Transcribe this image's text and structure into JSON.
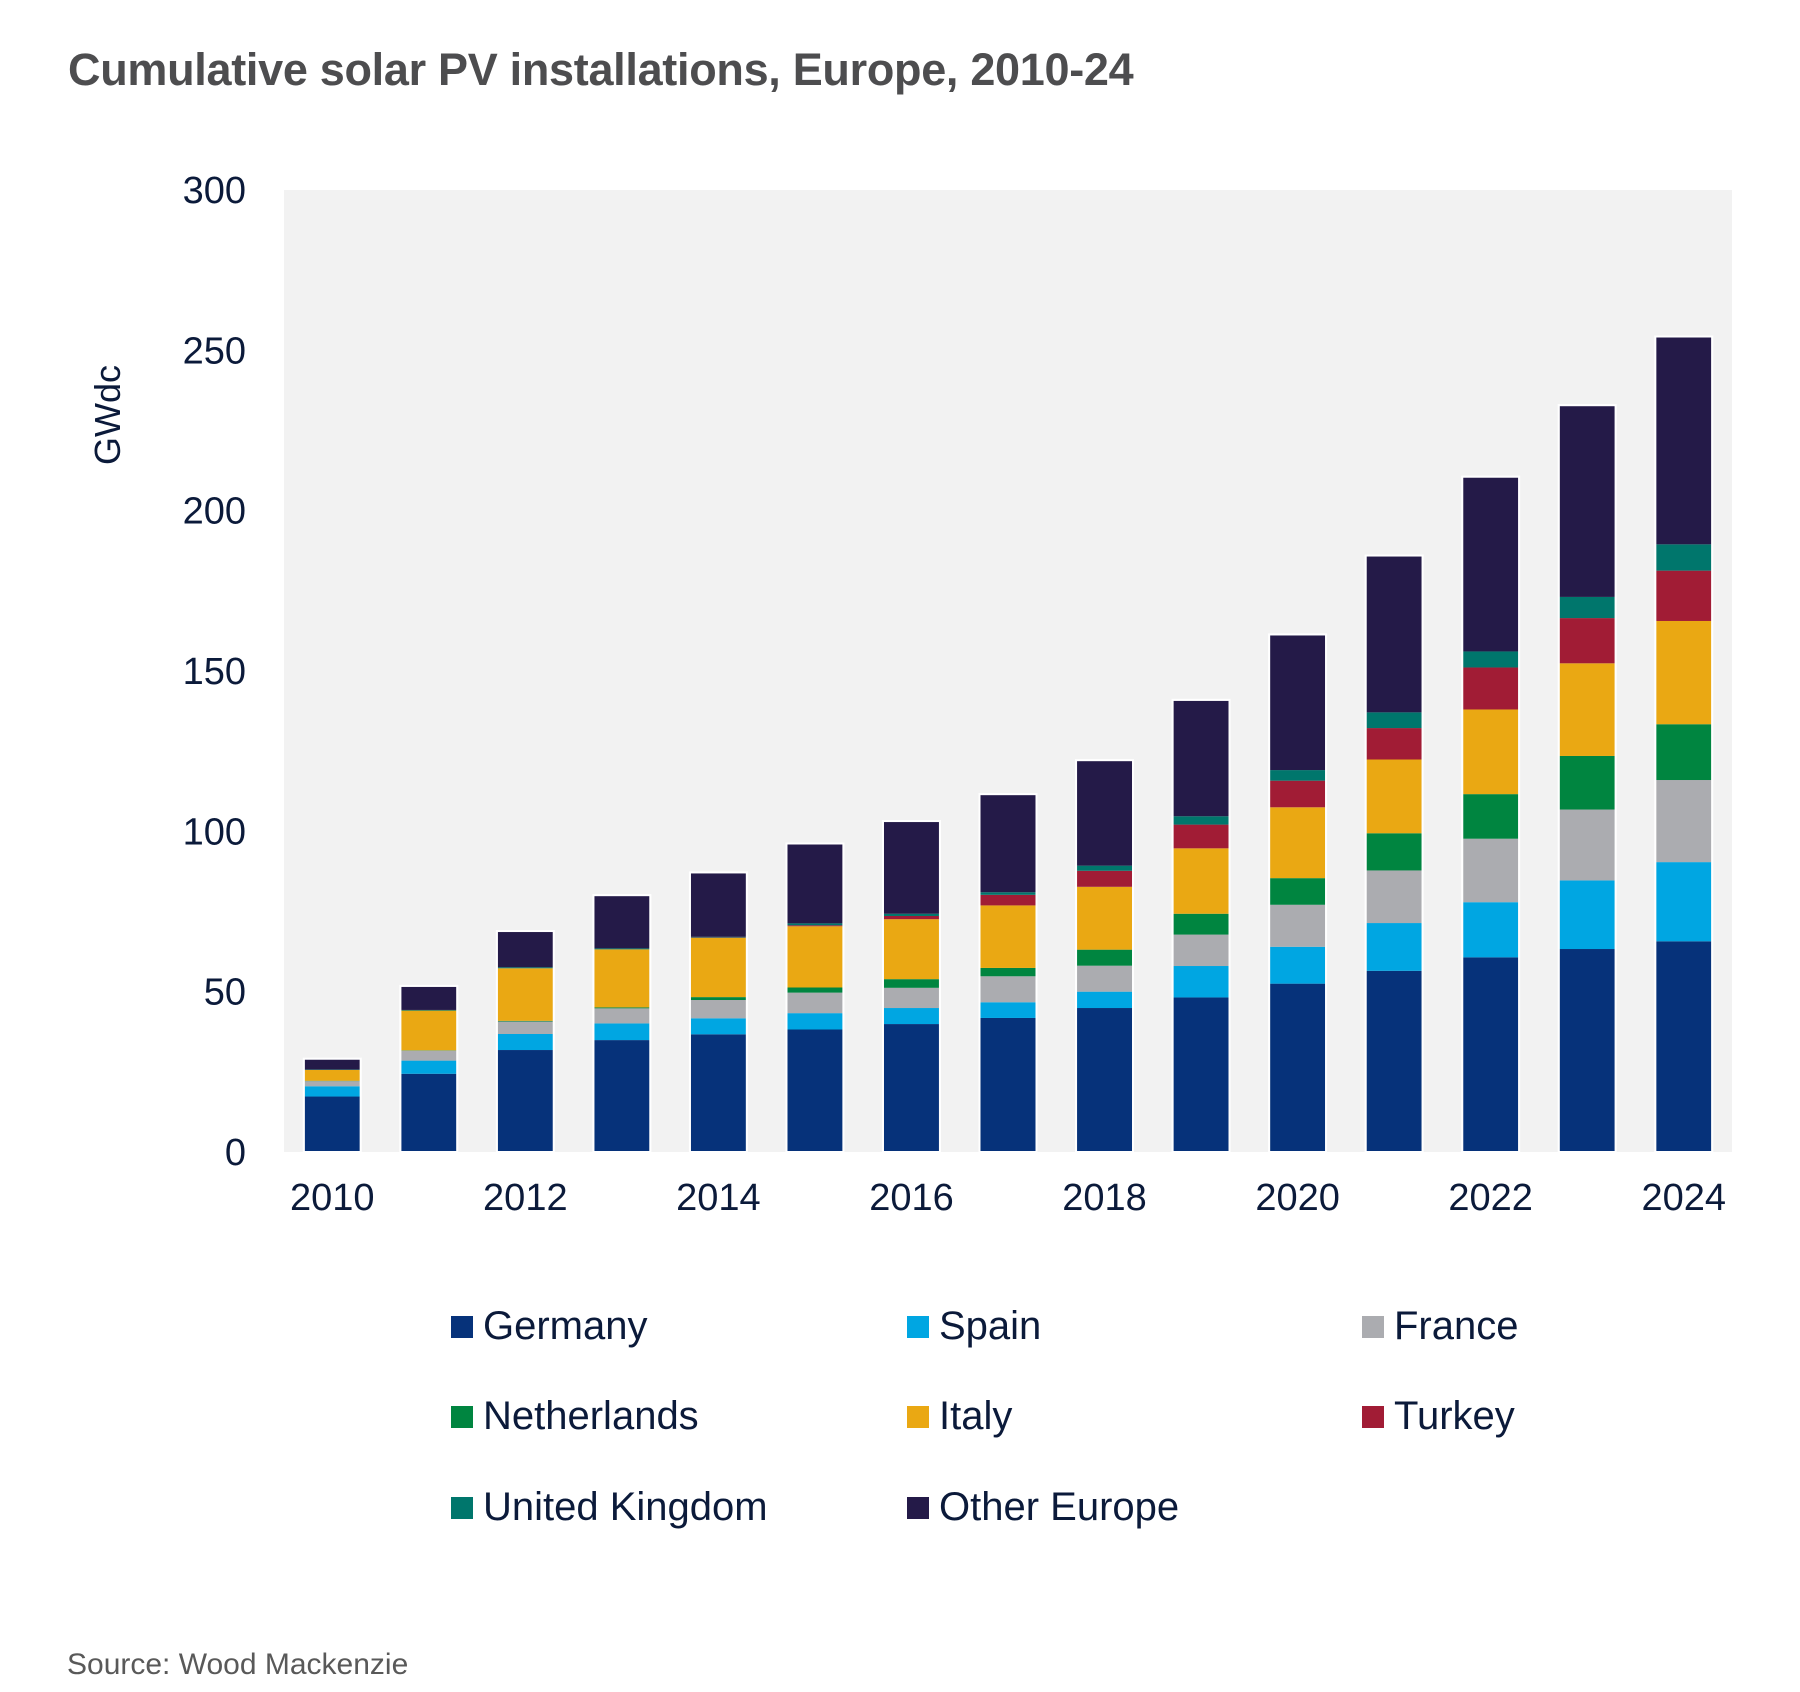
{
  "title": "Cumulative solar PV installations, Europe, 2010-24",
  "source": "Source:  Wood Mackenzie",
  "chart_data": {
    "type": "bar",
    "stacked": true,
    "title": "Cumulative solar PV installations, Europe, 2010-24",
    "xlabel": "",
    "ylabel": "GWdc",
    "ylim": [
      0,
      300
    ],
    "yticks": [
      0,
      50,
      100,
      150,
      200,
      250,
      300
    ],
    "grid": false,
    "legend_position": "bottom",
    "categories": [
      "2010",
      "2011",
      "2012",
      "2013",
      "2014",
      "2015",
      "2016",
      "2017",
      "2018",
      "2019",
      "2020",
      "2021",
      "2022",
      "2023",
      "2024"
    ],
    "xtick_labels": [
      "2010",
      "",
      "2012",
      "",
      "2014",
      "",
      "2016",
      "",
      "2018",
      "",
      "2020",
      "",
      "2022",
      "",
      "2024"
    ],
    "series": [
      {
        "name": "Germany",
        "color": "#06327a",
        "values": [
          17.3,
          24.4,
          31.8,
          34.9,
          36.7,
          38.2,
          39.9,
          41.8,
          44.9,
          48.2,
          52.5,
          56.5,
          60.7,
          63.3,
          65.7
        ]
      },
      {
        "name": "Spain",
        "color": "#00a6e2",
        "values": [
          3.2,
          4.1,
          5.0,
          5.2,
          5.0,
          5.1,
          5.0,
          4.9,
          5.1,
          9.8,
          11.5,
          14.9,
          17.2,
          21.4,
          24.7
        ]
      },
      {
        "name": "France",
        "color": "#abacb0",
        "values": [
          1.6,
          3.1,
          3.9,
          4.7,
          5.7,
          6.4,
          6.3,
          8.1,
          8.1,
          9.8,
          13.1,
          16.4,
          19.8,
          22.1,
          25.6
        ]
      },
      {
        "name": "Netherlands",
        "color": "#008540",
        "values": [
          0.1,
          0.1,
          0.2,
          0.3,
          0.9,
          1.6,
          2.7,
          2.6,
          5.0,
          6.5,
          8.3,
          11.6,
          13.9,
          16.7,
          17.4
        ]
      },
      {
        "name": "Italy",
        "color": "#eaa813",
        "values": [
          3.4,
          12.4,
          16.4,
          18.1,
          18.5,
          19.1,
          18.7,
          19.5,
          19.6,
          20.4,
          22.1,
          23.0,
          26.4,
          28.9,
          32.2
        ]
      },
      {
        "name": "Turkey",
        "color": "#a11c35",
        "values": [
          0.0,
          0.0,
          0.0,
          0.0,
          0.1,
          0.3,
          1.0,
          3.3,
          5.0,
          7.4,
          8.3,
          9.8,
          13.1,
          14.1,
          15.7
        ]
      },
      {
        "name": "United Kingdom",
        "color": "#00766c",
        "values": [
          0.1,
          0.2,
          0.3,
          0.3,
          0.2,
          0.6,
          0.7,
          0.8,
          1.6,
          2.6,
          3.3,
          4.9,
          5.0,
          6.6,
          8.2
        ]
      },
      {
        "name": "Other Europe",
        "color": "#241a48",
        "values": [
          3.1,
          7.2,
          11.0,
          16.3,
          19.8,
          24.6,
          28.6,
          30.3,
          32.6,
          36.0,
          42.0,
          48.6,
          54.2,
          59.5,
          64.5
        ]
      }
    ]
  },
  "legend": {
    "items": [
      {
        "label": "Germany",
        "color": "#06327a"
      },
      {
        "label": "Spain",
        "color": "#00a6e2"
      },
      {
        "label": "France",
        "color": "#abacb0"
      },
      {
        "label": "Netherlands",
        "color": "#008540"
      },
      {
        "label": "Italy",
        "color": "#eaa813"
      },
      {
        "label": "Turkey",
        "color": "#a11c35"
      },
      {
        "label": "United Kingdom",
        "color": "#00766c"
      },
      {
        "label": "Other Europe",
        "color": "#241a48"
      }
    ]
  }
}
